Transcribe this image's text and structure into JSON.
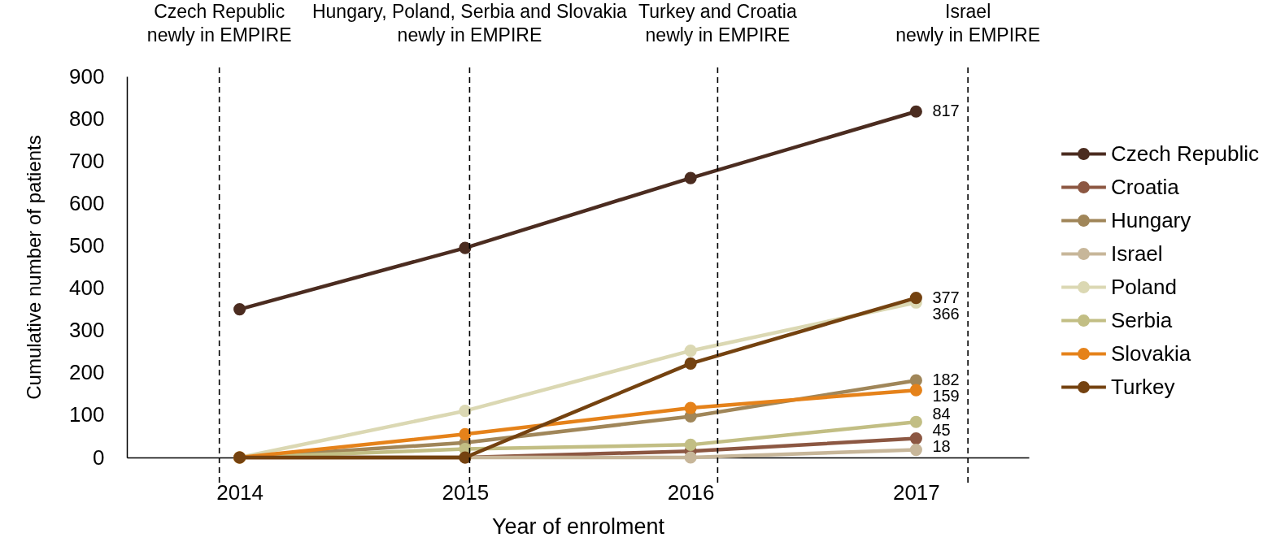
{
  "chart_data": {
    "type": "line",
    "xlabel": "Year of enrolment",
    "ylabel": "Cumulative number of patients",
    "x": [
      2014,
      2015,
      2016,
      2017
    ],
    "xlim": [
      2013.5,
      2017.5
    ],
    "xticks": [
      2014,
      2015,
      2016,
      2017
    ],
    "ylim": [
      0,
      900
    ],
    "yticks": [
      0,
      100,
      200,
      300,
      400,
      500,
      600,
      700,
      800,
      900
    ],
    "marker": "circle",
    "legend": "right",
    "series": [
      {
        "name": "Czech Republic",
        "color": "#4b2c20",
        "values": [
          350,
          495,
          660,
          817
        ],
        "value_labels": [
          null,
          null,
          null,
          "817"
        ]
      },
      {
        "name": "Croatia",
        "color": "#8c5742",
        "values": [
          0,
          0,
          15,
          45
        ],
        "value_labels": [
          null,
          null,
          null,
          "45"
        ]
      },
      {
        "name": "Hungary",
        "color": "#a08659",
        "values": [
          0,
          35,
          97,
          182
        ],
        "value_labels": [
          null,
          null,
          null,
          "182"
        ]
      },
      {
        "name": "Israel",
        "color": "#c7b699",
        "values": [
          0,
          0,
          0,
          18
        ],
        "value_labels": [
          null,
          null,
          null,
          "18"
        ]
      },
      {
        "name": "Poland",
        "color": "#dbd8b3",
        "values": [
          0,
          110,
          252,
          366
        ],
        "value_labels": [
          null,
          null,
          null,
          "366"
        ]
      },
      {
        "name": "Serbia",
        "color": "#c2be84",
        "values": [
          0,
          20,
          30,
          84
        ],
        "value_labels": [
          null,
          null,
          null,
          "84"
        ]
      },
      {
        "name": "Slovakia",
        "color": "#e5821a",
        "values": [
          0,
          55,
          117,
          159
        ],
        "value_labels": [
          null,
          null,
          null,
          "159"
        ]
      },
      {
        "name": "Turkey",
        "color": "#744210",
        "values": [
          0,
          0,
          222,
          377
        ],
        "value_labels": [
          null,
          null,
          null,
          "377"
        ]
      }
    ],
    "ref_lines": [
      {
        "axis": "x",
        "value": 2013.91,
        "label": "Czech Republic\nnewly in EMPIRE",
        "color": "#000000",
        "line_style": "dashed"
      },
      {
        "axis": "x",
        "value": 2015.02,
        "label": "Hungary, Poland, Serbia and Slovakia\nnewly in EMPIRE",
        "color": "#000000",
        "line_style": "dashed"
      },
      {
        "axis": "x",
        "value": 2016.12,
        "label": "Turkey and Croatia\nnewly in EMPIRE",
        "color": "#000000",
        "line_style": "dashed"
      },
      {
        "axis": "x",
        "value": 2017.23,
        "label": "Israel\nnewly in EMPIRE",
        "color": "#000000",
        "line_style": "dashed"
      }
    ]
  }
}
